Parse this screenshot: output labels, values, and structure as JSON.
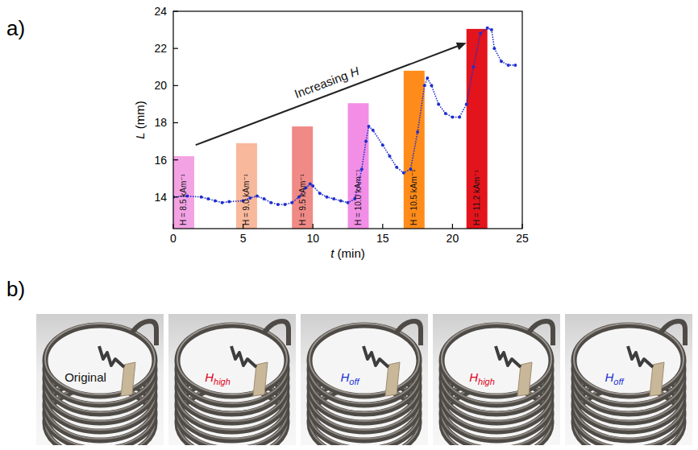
{
  "chart_data": {
    "type": "line",
    "x_label": "t (min)",
    "y_label": "L (mm)",
    "xlim": [
      0,
      25
    ],
    "ylim": [
      12.3,
      24
    ],
    "xticks": [
      0,
      5,
      10,
      15,
      20,
      25
    ],
    "yticks": [
      14,
      16,
      18,
      20,
      22,
      24
    ],
    "x": [
      0,
      1,
      2,
      2.5,
      3,
      3.5,
      4,
      5,
      5.5,
      6,
      6.5,
      7,
      7.5,
      8,
      8.5,
      9,
      9.5,
      9.8,
      10,
      10.5,
      11,
      11.5,
      12,
      12.5,
      13,
      13.5,
      13.8,
      14,
      14.3,
      15,
      15.5,
      16,
      16.5,
      17,
      17.5,
      18,
      18.2,
      18.5,
      19,
      19.5,
      20,
      20.5,
      21,
      21.5,
      22,
      22.5,
      22.8,
      23,
      23.5,
      24,
      24.5
    ],
    "series": [
      {
        "color": "#1f2fd0",
        "marker": "circle",
        "line_style": "dotted",
        "values": [
          14.0,
          14.05,
          14.0,
          13.9,
          13.8,
          13.7,
          13.75,
          13.8,
          13.95,
          14.05,
          13.9,
          13.7,
          13.6,
          13.6,
          13.7,
          14.0,
          14.5,
          14.7,
          14.6,
          14.2,
          14.0,
          13.9,
          13.8,
          13.7,
          13.9,
          15.5,
          17.0,
          17.8,
          17.6,
          16.8,
          16.2,
          15.6,
          15.3,
          15.5,
          17.5,
          20.0,
          20.4,
          20.0,
          19.0,
          18.5,
          18.3,
          18.3,
          19.0,
          21.0,
          22.8,
          23.1,
          23.0,
          22.0,
          21.3,
          21.1,
          21.1
        ]
      }
    ],
    "fields": [
      {
        "label": "H = 8.5 kAm⁻¹",
        "start": 0,
        "end": 1.5,
        "height": 16.2,
        "color": "#f3a3e4"
      },
      {
        "label": "H = 9.0 kAm⁻¹",
        "start": 4.5,
        "end": 6,
        "height": 16.9,
        "color": "#f8b89c"
      },
      {
        "label": "H = 9.5 kAm⁻¹",
        "start": 8.5,
        "end": 10,
        "height": 17.8,
        "color": "#f08a86"
      },
      {
        "label": "H = 10.0 kAm⁻¹",
        "start": 12.5,
        "end": 14,
        "height": 19.05,
        "color": "#f28ee6"
      },
      {
        "label": "H = 10.5 kAm⁻¹",
        "start": 16.5,
        "end": 18,
        "height": 20.8,
        "color": "#ff8c1a"
      },
      {
        "label": "H = 11.2 kAm⁻¹",
        "start": 21,
        "end": 22.5,
        "height": 23.05,
        "color": "#e3141c"
      }
    ],
    "annotation": {
      "text": "Increasing H",
      "from": [
        1.6,
        16.8
      ],
      "to": [
        21,
        22.3
      ]
    }
  },
  "panel_labels": [
    "a)",
    "b)"
  ],
  "photos": [
    {
      "label": "Original",
      "color": "#111111"
    },
    {
      "label": "H",
      "subscript": "high",
      "color": "#e0001b"
    },
    {
      "label": "H",
      "subscript": "off",
      "color": "#1a2fd6"
    },
    {
      "label": "H",
      "subscript": "high",
      "color": "#e0001b"
    },
    {
      "label": "H",
      "subscript": "off",
      "color": "#1a2fd6"
    }
  ]
}
